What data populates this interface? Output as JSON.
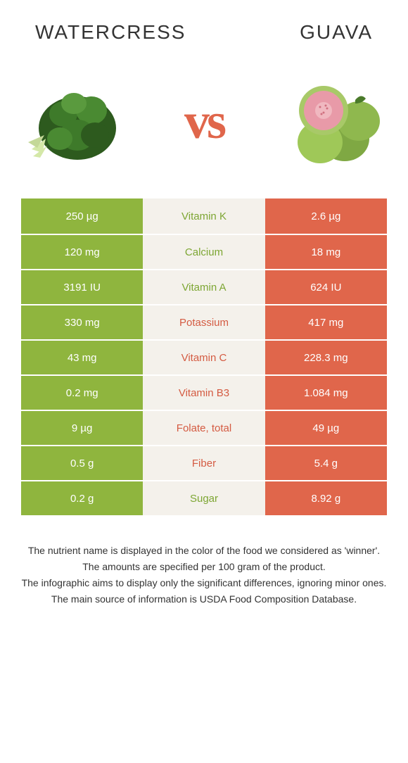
{
  "left_food": {
    "name": "Watercress",
    "color": "#8fb53e",
    "text_color": "#7da633"
  },
  "right_food": {
    "name": "Guava",
    "color": "#e0664b",
    "text_color": "#d45b42"
  },
  "vs_text": "vs",
  "background_stripe_alt": "#f4f1eb",
  "nutrients": [
    {
      "label": "Vitamin K",
      "left": "250 µg",
      "right": "2.6 µg",
      "winner": "left"
    },
    {
      "label": "Calcium",
      "left": "120 mg",
      "right": "18 mg",
      "winner": "left"
    },
    {
      "label": "Vitamin A",
      "left": "3191 IU",
      "right": "624 IU",
      "winner": "left"
    },
    {
      "label": "Potassium",
      "left": "330 mg",
      "right": "417 mg",
      "winner": "right"
    },
    {
      "label": "Vitamin C",
      "left": "43 mg",
      "right": "228.3 mg",
      "winner": "right"
    },
    {
      "label": "Vitamin B3",
      "left": "0.2 mg",
      "right": "1.084 mg",
      "winner": "right"
    },
    {
      "label": "Folate, total",
      "left": "9 µg",
      "right": "49 µg",
      "winner": "right"
    },
    {
      "label": "Fiber",
      "left": "0.5 g",
      "right": "5.4 g",
      "winner": "right"
    },
    {
      "label": "Sugar",
      "left": "0.2 g",
      "right": "8.92 g",
      "winner": "left"
    }
  ],
  "footnotes": [
    "The nutrient name is displayed in the color of the food we considered as 'winner'.",
    "The amounts are specified per 100 gram of the product.",
    "The infographic aims to display only the significant differences, ignoring minor ones.",
    "The main source of information is USDA Food Composition Database."
  ]
}
